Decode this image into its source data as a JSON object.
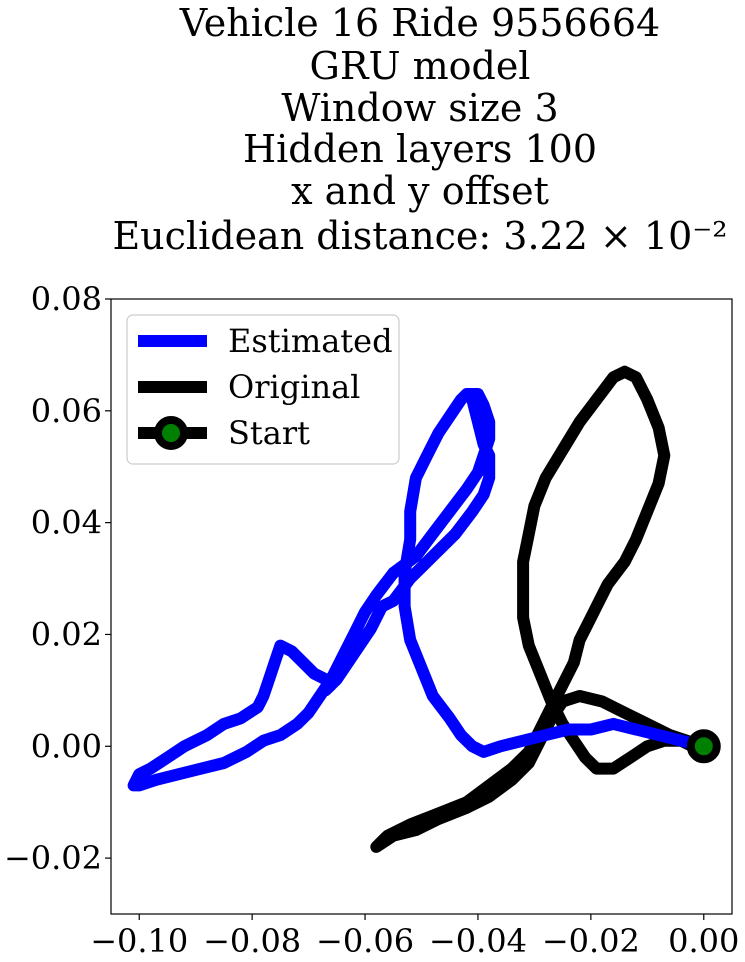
{
  "chart_data": {
    "type": "line",
    "title_lines": [
      "Vehicle 16 Ride 9556664",
      "GRU model",
      "Window size 3",
      "Hidden layers 100",
      "x and y offset",
      "Euclidean distance: 3.22 × 10⁻²"
    ],
    "xlabel": "",
    "ylabel": "",
    "xlim": [
      -0.105,
      0.005
    ],
    "ylim": [
      -0.03,
      0.08
    ],
    "xticks": [
      -0.1,
      -0.08,
      -0.06,
      -0.04,
      -0.02,
      0.0
    ],
    "xtick_labels": [
      "−0.10",
      "−0.08",
      "−0.06",
      "−0.04",
      "−0.02",
      "0.00"
    ],
    "yticks": [
      -0.02,
      0.0,
      0.02,
      0.04,
      0.06,
      0.08
    ],
    "ytick_labels": [
      "−0.02",
      "0.00",
      "0.02",
      "0.04",
      "0.06",
      "0.08"
    ],
    "grid": false,
    "legend_position": "top-left",
    "series": [
      {
        "name": "Estimated",
        "color": "#0000ff",
        "points": [
          [
            0.0,
            0.0
          ],
          [
            -0.004,
            0.001
          ],
          [
            -0.008,
            0.002
          ],
          [
            -0.012,
            0.003
          ],
          [
            -0.016,
            0.004
          ],
          [
            -0.02,
            0.003
          ],
          [
            -0.024,
            0.003
          ],
          [
            -0.028,
            0.002
          ],
          [
            -0.032,
            0.001
          ],
          [
            -0.036,
            0.0
          ],
          [
            -0.039,
            -0.001
          ],
          [
            -0.041,
            0.0
          ],
          [
            -0.043,
            0.002
          ],
          [
            -0.045,
            0.005
          ],
          [
            -0.048,
            0.009
          ],
          [
            -0.05,
            0.014
          ],
          [
            -0.052,
            0.019
          ],
          [
            -0.053,
            0.025
          ],
          [
            -0.053,
            0.031
          ],
          [
            -0.052,
            0.037
          ],
          [
            -0.052,
            0.042
          ],
          [
            -0.051,
            0.048
          ],
          [
            -0.049,
            0.052
          ],
          [
            -0.047,
            0.056
          ],
          [
            -0.045,
            0.059
          ],
          [
            -0.043,
            0.062
          ],
          [
            -0.042,
            0.063
          ],
          [
            -0.04,
            0.063
          ],
          [
            -0.039,
            0.061
          ],
          [
            -0.038,
            0.058
          ],
          [
            -0.038,
            0.055
          ],
          [
            -0.039,
            0.052
          ],
          [
            -0.04,
            0.049
          ],
          [
            -0.042,
            0.046
          ],
          [
            -0.045,
            0.042
          ],
          [
            -0.048,
            0.038
          ],
          [
            -0.051,
            0.034
          ],
          [
            -0.055,
            0.031
          ],
          [
            -0.058,
            0.027
          ],
          [
            -0.06,
            0.024
          ],
          [
            -0.062,
            0.02
          ],
          [
            -0.064,
            0.016
          ],
          [
            -0.066,
            0.012
          ],
          [
            -0.068,
            0.009
          ],
          [
            -0.07,
            0.006
          ],
          [
            -0.072,
            0.004
          ],
          [
            -0.075,
            0.002
          ],
          [
            -0.078,
            0.001
          ],
          [
            -0.081,
            -0.001
          ],
          [
            -0.085,
            -0.003
          ],
          [
            -0.089,
            -0.004
          ],
          [
            -0.093,
            -0.005
          ],
          [
            -0.097,
            -0.006
          ],
          [
            -0.1,
            -0.007
          ],
          [
            -0.101,
            -0.007
          ],
          [
            -0.1,
            -0.005
          ],
          [
            -0.098,
            -0.004
          ],
          [
            -0.095,
            -0.002
          ],
          [
            -0.092,
            0.0
          ],
          [
            -0.088,
            0.002
          ],
          [
            -0.085,
            0.004
          ],
          [
            -0.082,
            0.005
          ],
          [
            -0.079,
            0.007
          ],
          [
            -0.078,
            0.009
          ],
          [
            -0.077,
            0.012
          ],
          [
            -0.076,
            0.015
          ],
          [
            -0.075,
            0.018
          ],
          [
            -0.073,
            0.017
          ],
          [
            -0.071,
            0.015
          ],
          [
            -0.069,
            0.013
          ],
          [
            -0.067,
            0.012
          ],
          [
            -0.066,
            0.011
          ],
          [
            -0.067,
            0.01
          ],
          [
            -0.065,
            0.012
          ],
          [
            -0.063,
            0.015
          ],
          [
            -0.061,
            0.018
          ],
          [
            -0.059,
            0.021
          ],
          [
            -0.057,
            0.025
          ],
          [
            -0.055,
            0.026
          ],
          [
            -0.052,
            0.03
          ],
          [
            -0.05,
            0.032
          ],
          [
            -0.047,
            0.035
          ],
          [
            -0.044,
            0.038
          ],
          [
            -0.041,
            0.042
          ],
          [
            -0.039,
            0.045
          ],
          [
            -0.038,
            0.048
          ],
          [
            -0.038,
            0.052
          ],
          [
            -0.039,
            0.054
          ],
          [
            -0.04,
            0.058
          ],
          [
            -0.041,
            0.062
          ]
        ]
      },
      {
        "name": "Original",
        "color": "#000000",
        "points": [
          [
            0.0,
            0.0
          ],
          [
            -0.003,
            0.001
          ],
          [
            -0.006,
            0.002
          ],
          [
            -0.01,
            0.004
          ],
          [
            -0.014,
            0.006
          ],
          [
            -0.018,
            0.008
          ],
          [
            -0.022,
            0.009
          ],
          [
            -0.025,
            0.008
          ],
          [
            -0.027,
            0.005
          ],
          [
            -0.029,
            0.001
          ],
          [
            -0.031,
            -0.003
          ],
          [
            -0.034,
            -0.006
          ],
          [
            -0.038,
            -0.009
          ],
          [
            -0.042,
            -0.011
          ],
          [
            -0.047,
            -0.013
          ],
          [
            -0.051,
            -0.015
          ],
          [
            -0.055,
            -0.016
          ],
          [
            -0.058,
            -0.018
          ],
          [
            -0.056,
            -0.016
          ],
          [
            -0.052,
            -0.014
          ],
          [
            -0.047,
            -0.012
          ],
          [
            -0.042,
            -0.01
          ],
          [
            -0.038,
            -0.007
          ],
          [
            -0.034,
            -0.004
          ],
          [
            -0.031,
            -0.001
          ],
          [
            -0.029,
            0.003
          ],
          [
            -0.027,
            0.007
          ],
          [
            -0.025,
            0.011
          ],
          [
            -0.023,
            0.015
          ],
          [
            -0.022,
            0.019
          ],
          [
            -0.02,
            0.023
          ],
          [
            -0.019,
            0.025
          ],
          [
            -0.017,
            0.029
          ],
          [
            -0.014,
            0.033
          ],
          [
            -0.012,
            0.037
          ],
          [
            -0.01,
            0.042
          ],
          [
            -0.008,
            0.047
          ],
          [
            -0.007,
            0.052
          ],
          [
            -0.008,
            0.057
          ],
          [
            -0.01,
            0.062
          ],
          [
            -0.012,
            0.066
          ],
          [
            -0.014,
            0.067
          ],
          [
            -0.016,
            0.066
          ],
          [
            -0.019,
            0.062
          ],
          [
            -0.022,
            0.058
          ],
          [
            -0.025,
            0.053
          ],
          [
            -0.028,
            0.048
          ],
          [
            -0.03,
            0.043
          ],
          [
            -0.031,
            0.038
          ],
          [
            -0.032,
            0.033
          ],
          [
            -0.032,
            0.028
          ],
          [
            -0.032,
            0.023
          ],
          [
            -0.031,
            0.018
          ],
          [
            -0.029,
            0.013
          ],
          [
            -0.027,
            0.008
          ],
          [
            -0.025,
            0.004
          ],
          [
            -0.023,
            0.001
          ],
          [
            -0.021,
            -0.002
          ],
          [
            -0.019,
            -0.004
          ],
          [
            -0.016,
            -0.004
          ],
          [
            -0.013,
            -0.002
          ],
          [
            -0.01,
            0.0
          ],
          [
            -0.007,
            0.001
          ],
          [
            -0.004,
            0.001
          ],
          [
            -0.002,
            0.0
          ]
        ]
      }
    ],
    "start_marker": {
      "name": "Start",
      "x": 0.0,
      "y": 0.0,
      "fill_color": "#008000",
      "edge_color": "#000000"
    }
  }
}
